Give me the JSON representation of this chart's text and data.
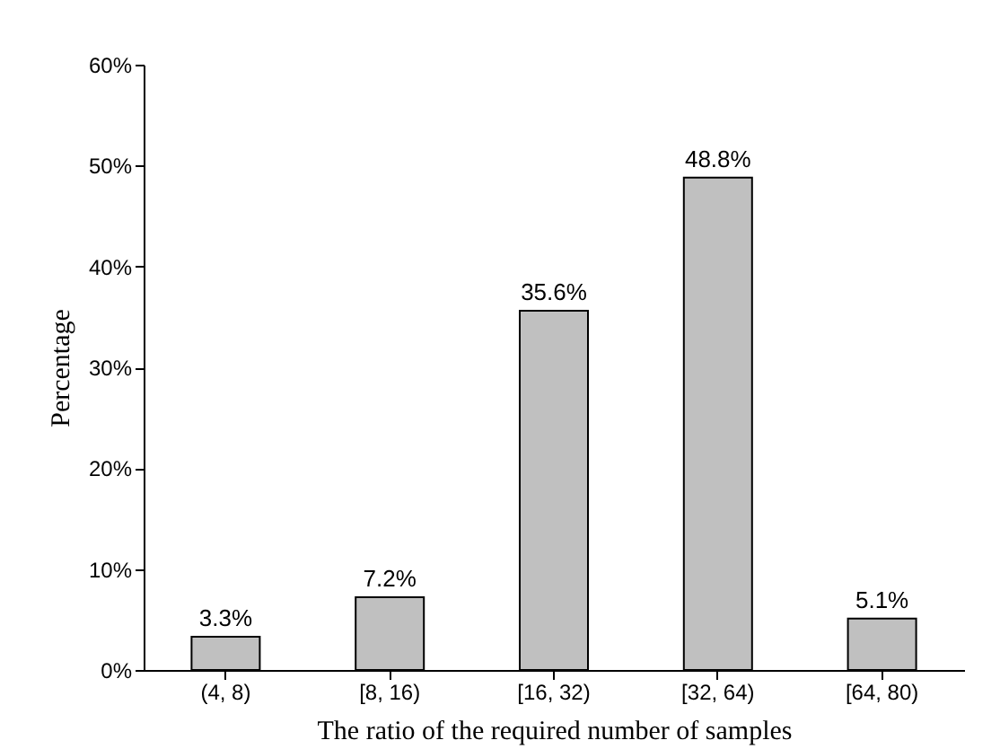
{
  "chart_data": {
    "type": "bar",
    "xlabel": "The ratio of the required number of samples",
    "ylabel": "Percentage",
    "categories": [
      "(4, 8)",
      "[8, 16)",
      "[16, 32)",
      "[32, 64)",
      "[64, 80)"
    ],
    "values": [
      3.3,
      7.2,
      35.6,
      48.8,
      5.1
    ],
    "value_labels": [
      "3.3%",
      "7.2%",
      "35.6%",
      "48.8%",
      "5.1%"
    ],
    "color": "#c0c0c0",
    "ylim": [
      0,
      60
    ],
    "yticks": [
      {
        "value": 0,
        "label": "0%"
      },
      {
        "value": 10,
        "label": "10%"
      },
      {
        "value": 20,
        "label": "20%"
      },
      {
        "value": 30,
        "label": "30%"
      },
      {
        "value": 40,
        "label": "40%"
      },
      {
        "value": 50,
        "label": "50%"
      },
      {
        "value": 60,
        "label": "60%"
      }
    ],
    "grid": false
  }
}
